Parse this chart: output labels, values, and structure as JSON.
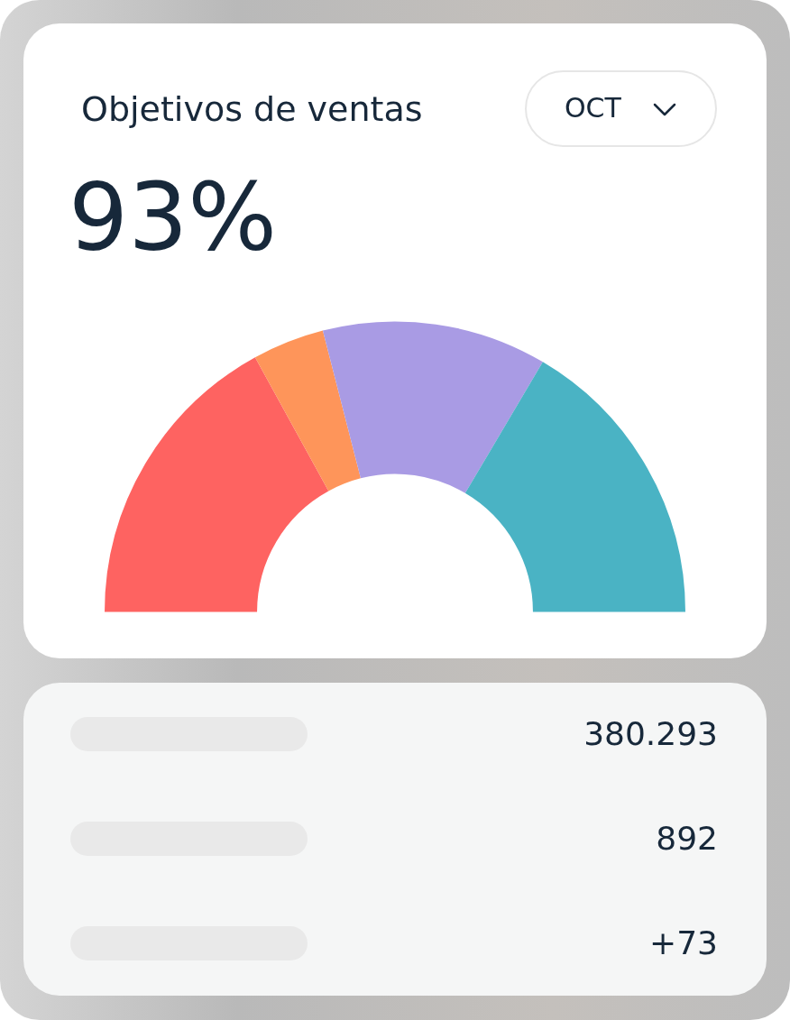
{
  "chart_data": {
    "type": "donut",
    "title": "Objetivos de ventas",
    "categories": [
      null,
      null,
      null,
      null
    ],
    "values": [
      34,
      8,
      25,
      33
    ],
    "colors": [
      "#fe6361",
      "#fe955a",
      "#a99be4",
      "#4ab3c4"
    ],
    "annotations": [
      "93%",
      "OCT",
      "380.293",
      "892",
      "+73"
    ]
  }
}
